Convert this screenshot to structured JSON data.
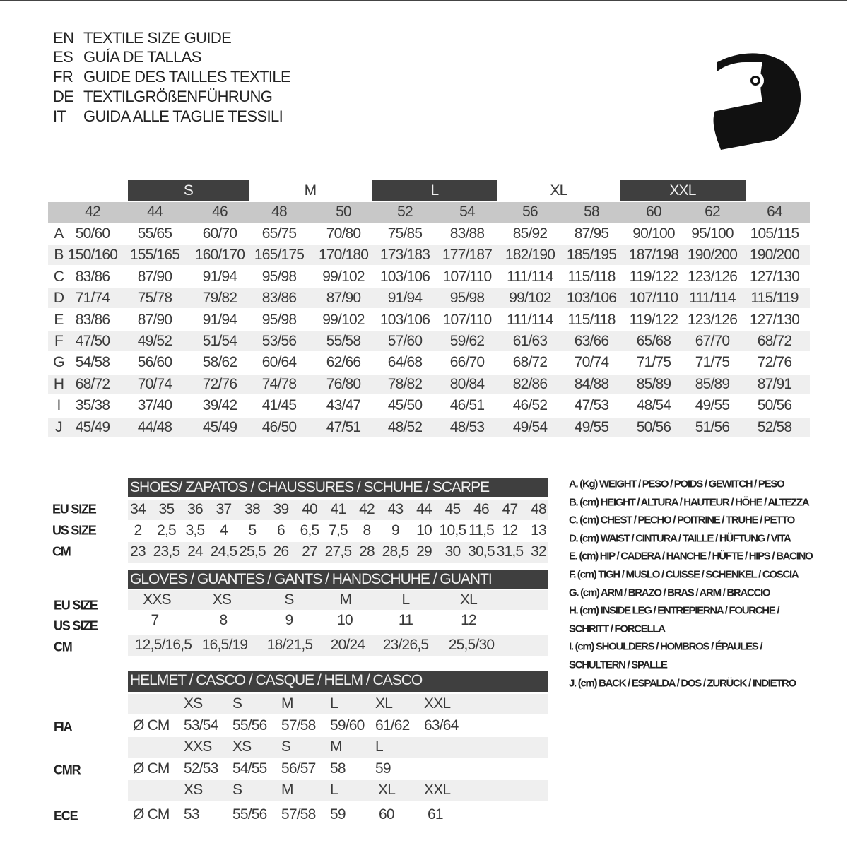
{
  "titles": [
    {
      "code": "EN",
      "text": "TEXTILE SIZE GUIDE"
    },
    {
      "code": "ES",
      "text": "GUÍA DE TALLAS"
    },
    {
      "code": "FR",
      "text": "GUIDE DES TAILLES TEXTILE"
    },
    {
      "code": "DE",
      "text": "TEXTILGRÖßENFÜHRUNG"
    },
    {
      "code": "IT",
      "text": "GUIDA ALLE TAGLIE TESSILI"
    }
  ],
  "icons": {
    "logo": "helmet-icon"
  },
  "colors": {
    "header_dark": "#3f3f3f",
    "header_gray": "#c8c8c8",
    "row_stripe": "#efefef"
  },
  "textile": {
    "size_bands": [
      "S",
      "M",
      "L",
      "XL",
      "XXL"
    ],
    "eu_sizes": [
      "42",
      "44",
      "46",
      "48",
      "50",
      "52",
      "54",
      "56",
      "58",
      "60",
      "62",
      "64"
    ],
    "rows": [
      {
        "label": "A",
        "values": [
          "50/60",
          "55/65",
          "60/70",
          "65/75",
          "70/80",
          "75/85",
          "83/88",
          "85/92",
          "87/95",
          "90/100",
          "95/100",
          "105/115"
        ]
      },
      {
        "label": "B",
        "values": [
          "150/160",
          "155/165",
          "160/170",
          "165/175",
          "170/180",
          "173/183",
          "177/187",
          "182/190",
          "185/195",
          "187/198",
          "190/200",
          "190/200"
        ]
      },
      {
        "label": "C",
        "values": [
          "83/86",
          "87/90",
          "91/94",
          "95/98",
          "99/102",
          "103/106",
          "107/110",
          "111/114",
          "115/118",
          "119/122",
          "123/126",
          "127/130"
        ]
      },
      {
        "label": "D",
        "values": [
          "71/74",
          "75/78",
          "79/82",
          "83/86",
          "87/90",
          "91/94",
          "95/98",
          "99/102",
          "103/106",
          "107/110",
          "111/114",
          "115/119"
        ]
      },
      {
        "label": "E",
        "values": [
          "83/86",
          "87/90",
          "91/94",
          "95/98",
          "99/102",
          "103/106",
          "107/110",
          "111/114",
          "115/118",
          "119/122",
          "123/126",
          "127/130"
        ]
      },
      {
        "label": "F",
        "values": [
          "47/50",
          "49/52",
          "51/54",
          "53/56",
          "55/58",
          "57/60",
          "59/62",
          "61/63",
          "63/66",
          "65/68",
          "67/70",
          "68/72"
        ]
      },
      {
        "label": "G",
        "values": [
          "54/58",
          "56/60",
          "58/62",
          "60/64",
          "62/66",
          "64/68",
          "66/70",
          "68/72",
          "70/74",
          "71/75",
          "71/75",
          "72/76"
        ]
      },
      {
        "label": "H",
        "values": [
          "68/72",
          "70/74",
          "72/76",
          "74/78",
          "76/80",
          "78/82",
          "80/84",
          "82/86",
          "84/88",
          "85/89",
          "85/89",
          "87/91"
        ]
      },
      {
        "label": "I",
        "values": [
          "35/38",
          "37/40",
          "39/42",
          "41/45",
          "43/47",
          "45/50",
          "46/51",
          "46/52",
          "47/53",
          "48/54",
          "49/55",
          "50/56"
        ]
      },
      {
        "label": "J",
        "values": [
          "45/49",
          "44/48",
          "45/49",
          "46/50",
          "47/51",
          "48/52",
          "48/53",
          "49/54",
          "49/55",
          "50/56",
          "51/56",
          "52/58"
        ]
      }
    ]
  },
  "shoes": {
    "title": "SHOES/ ZAPATOS / CHAUSSURES / SCHUHE / SCARPE",
    "rows": [
      {
        "label": "EU SIZE",
        "values": [
          "34",
          "35",
          "36",
          "37",
          "38",
          "39",
          "40",
          "41",
          "42",
          "43",
          "44",
          "45",
          "46",
          "47",
          "48"
        ]
      },
      {
        "label": "US SIZE",
        "values": [
          "2",
          "2,5",
          "3,5",
          "4",
          "5",
          "6",
          "6,5",
          "7,5",
          "8",
          "9",
          "10",
          "10,5",
          "11,5",
          "12",
          "13"
        ]
      },
      {
        "label": "CM",
        "values": [
          "23",
          "23,5",
          "24",
          "24,5",
          "25,5",
          "26",
          "27",
          "27,5",
          "28",
          "28,5",
          "29",
          "30",
          "30,5",
          "31,5",
          "32"
        ]
      }
    ]
  },
  "gloves": {
    "title": "GLOVES / GUANTES / GANTS / HANDSCHUHE / GUANTI",
    "rows": [
      {
        "label": "EU SIZE",
        "values": [
          "XXS",
          "XS",
          "S",
          "M",
          "L",
          "XL"
        ]
      },
      {
        "label": "US SIZE",
        "values": [
          "7",
          "8",
          "9",
          "10",
          "11",
          "12"
        ]
      },
      {
        "label": "CM",
        "values": [
          "12,5/16,5",
          "16,5/19",
          "18/21,5",
          "20/24",
          "23/26,5",
          "25,5/30"
        ]
      }
    ]
  },
  "helmet": {
    "title": "HELMET / CASCO / CASQUE / HELM / CASCO",
    "standards": [
      {
        "label": "FIA",
        "unit": "Ø CM",
        "sizes": [
          "XS",
          "S",
          "M",
          "L",
          "XL",
          "XXL"
        ],
        "values": [
          "53/54",
          "55/56",
          "57/58",
          "59/60",
          "61/62",
          "63/64"
        ]
      },
      {
        "label": "CMR",
        "unit": "Ø CM",
        "sizes": [
          "XXS",
          "XS",
          "S",
          "M",
          "L"
        ],
        "values": [
          "52/53",
          "54/55",
          "56/57",
          "58",
          "59"
        ]
      },
      {
        "label": "ECE",
        "unit": "Ø CM",
        "sizes": [
          "XS",
          "S",
          "M",
          "L",
          "XL",
          "XXL"
        ],
        "values": [
          "53",
          "55/56",
          "57/58",
          "59",
          "60",
          "61"
        ]
      }
    ]
  },
  "legend": [
    "A. (Kg) WEIGHT / PESO / POIDS / GEWITCH / PESO",
    "B. (cm) HEIGHT / ALTURA / HAUTEUR / HÖHE / ALTEZZA",
    "C. (cm) CHEST / PECHO / POITRINE / TRUHE / PETTO",
    "D. (cm) WAIST / CINTURA / TAILLE / HÜFTUNG / VITA",
    "E. (cm) HIP / CADERA / HANCHE / HÜFTE / HIPS /  BACINO",
    "F.  (cm) TIGH / MUSLO / CUISSE / SCHENKEL / COSCIA",
    "G. (cm) ARM  / BRAZO / BRAS / ARM / BRACCIO",
    "H. (cm) INSIDE LEG / ENTREPIERNA / FOURCHE /",
    "SCHRITT / FORCELLA",
    "I.  (cm) SHOULDERS / HOMBROS / ÉPAULES /",
    "SCHULTERN / SPALLE",
    "J. (cm) BACK / ESPALDA / DOS / ZURÜCK / INDIETRO"
  ]
}
